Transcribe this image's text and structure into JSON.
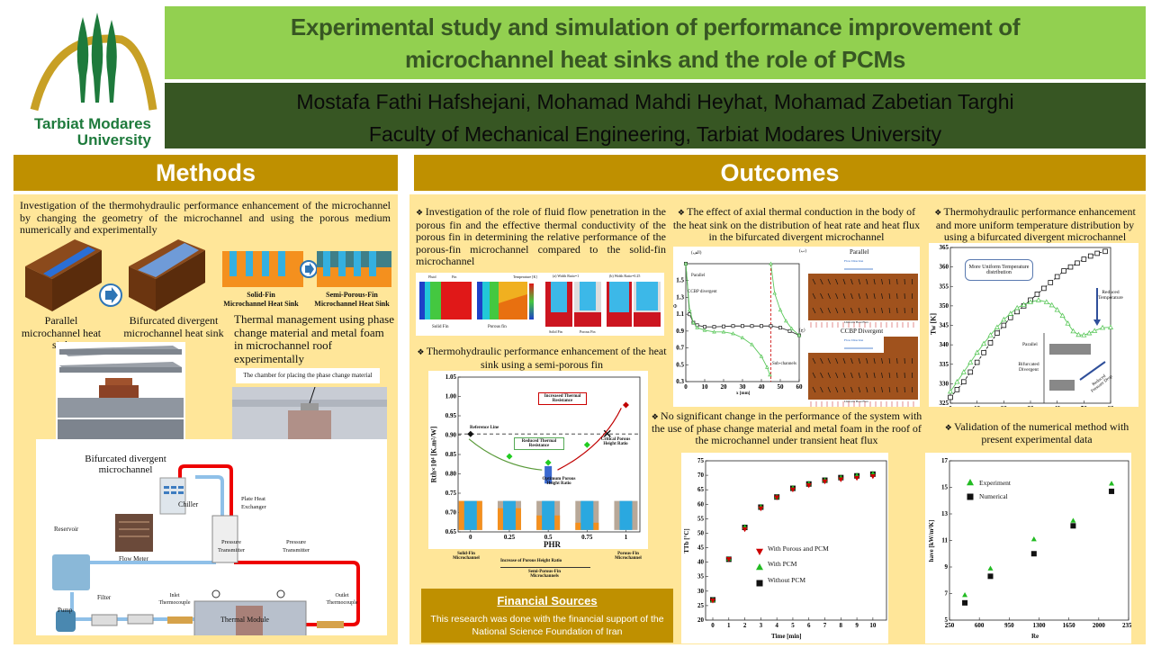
{
  "header": {
    "university_logo_text": [
      "Tarbiat Modares",
      "University"
    ],
    "title_lines": [
      "Experimental study and simulation of performance improvement of",
      "microchannel heat sinks and the role of PCMs"
    ],
    "authors": "Mostafa Fathi Hafshejani, Mohamad Mahdi Heyhat, Mohamad Zabetian Targhi",
    "affiliation": "Faculty of Mechanical Engineering, Tarbiat Modares University"
  },
  "colors": {
    "title_bg": "#92d050",
    "title_text": "#375623",
    "author_bg": "#375623",
    "section_bg": "#bf9000",
    "panel_bg": "#ffe699"
  },
  "methods": {
    "heading": "Methods",
    "intro": "Investigation of the thermohydraulic performance enhancement of the microchannel by changing the geometry of the microchannel and using the porous medium numerically and experimentally",
    "parallel_label": "Parallel microchannel heat sink",
    "bifurcated_label": "Bifurcated divergent microchannel heat sink",
    "solid_fin_label": [
      "Solid-Fin",
      "Microchannel Heat Sink"
    ],
    "semi_porous_label": [
      "Semi-Porous-Fin",
      "Microchannel Heat Sink"
    ],
    "thermal_management": "Thermal management using phase change material and metal foam in microchannel roof experimentally",
    "chamber_label": "The chamber for placing the phase change material",
    "setup": {
      "bifurcated": "Bifurcated divergent microchannel",
      "chiller": "Chiller",
      "plate_hx": "Plate Heat Exchanger",
      "reservoir": "Reservoir",
      "pressure_1": "Pressure Transmitter",
      "pressure_2": "Pressure Transmitter",
      "flow_meter": "Flow Meter",
      "filter": "Filter",
      "inlet_tc": "Inlet Thermocouple",
      "outlet_tc": "Outlet Thermocouple",
      "thermal_module": "Thermal Module",
      "pump": "Pump"
    }
  },
  "outcomes": {
    "heading": "Outcomes",
    "bullet_porous_penetration": "Investigation of the role of fluid flow penetration in the porous fin and the effective thermal conductivity of the porous fin in determining the relative performance of the porous-fin microchannel compared to the solid-fin microchannel",
    "contour": {
      "fluid": "Fluid",
      "fin": "Fin",
      "solid_fin": "Solid Fin",
      "porous_fin": "Porous fin",
      "temp_legend": "Temperature [K]",
      "width_ratio_1": "(a) Width Ratio=1",
      "width_ratio_025": "(b) Width Ratio=0.25",
      "solid": "Solid Fin",
      "porous": "Porous Fin"
    },
    "bullet_semi_porous": "Thermohydraulic performance enhancement of the heat sink using a semi-porous fin",
    "bullet_axial": "The effect of axial thermal conduction in the body of the heat sink on the distribution of heat rate and heat flux in the bifurcated divergent microchannel",
    "bullet_uniform": "Thermohydraulic performance enhancement and more uniform temperature distribution by using a bifurcated divergent microchannel",
    "bullet_pcm": "No significant change in the performance of the system with the use of phase change material and metal foam in the roof of the microchannel under transient heat flux",
    "bullet_validation": "Validation of the numerical method with present experimental data",
    "flow_fields": {
      "label_a": "(الف)",
      "label_b": "(ب)",
      "label_c": "(ج)",
      "parallel": "Parallel",
      "ccbp": "CCBP Divergent",
      "flow_direction": "Flow Direction",
      "heat_flux": "Uniform Heat Flux"
    },
    "financial": {
      "heading": "Financial Sources",
      "text": "This research was done with the financial support of the National Science Foundation of Iran"
    }
  },
  "chart_data": [
    {
      "id": "rth",
      "type": "scatter",
      "xlabel": "PHR",
      "ylabel": "Rth×10⁴ [K.m²/W]",
      "xlim": [
        -0.08,
        1.09
      ],
      "ylim": [
        0.65,
        1.05
      ],
      "xticks": [
        0,
        0.25,
        0.5,
        0.75,
        1
      ],
      "xtick_labels": [
        "0",
        "0.25",
        "0.5",
        "0.75",
        "1"
      ],
      "yticks": [
        0.65,
        0.7,
        0.75,
        0.8,
        0.85,
        0.9,
        0.95,
        1.0,
        1.05
      ],
      "ytick_labels": [
        "0.65",
        "0.70",
        "0.75",
        "0.80",
        "0.85",
        "0.90",
        "0.95",
        "1.00",
        "1.05"
      ],
      "reference_line": 0.903,
      "series": [
        {
          "name": "Solid-fin",
          "color": "#111111",
          "marker": "diamond",
          "points": [
            [
              0,
              0.903
            ]
          ]
        },
        {
          "name": "Semi-porous",
          "color": "#22cc22",
          "marker": "diamond",
          "points": [
            [
              0.25,
              0.845
            ],
            [
              0.5,
              0.829
            ],
            [
              0.75,
              0.875
            ]
          ]
        },
        {
          "name": "Porous-fin",
          "color": "#c00000",
          "marker": "diamond",
          "points": [
            [
              1,
              0.978
            ]
          ]
        },
        {
          "name": "Critical",
          "color": "#111111",
          "marker": "x",
          "points": [
            [
              0.88,
              0.904
            ]
          ]
        }
      ],
      "annotations": {
        "reference": "Reference Line",
        "increased": "Increased Thermal Resistance",
        "reduced": "Reduced Thermal Resistance",
        "critical": "Critical Porous Height Ratio",
        "optimum": "Optimum Porous Height Ratio"
      },
      "below": {
        "solid": "Solid-Fin Microchannel",
        "porous": "Porous-Fin Microchannel",
        "increase": "Increase of Porous Height Ratio",
        "semi": "Semi-Porous-Fin Microchannels"
      }
    },
    {
      "id": "phi",
      "type": "line",
      "xlabel": "x [mm]",
      "ylabel": "Φ",
      "xlim": [
        0,
        60
      ],
      "ylim": [
        0.3,
        1.7
      ],
      "xticks": [
        0,
        10,
        20,
        30,
        40,
        50,
        60
      ],
      "xtick_labels": [
        "0",
        "10",
        "20",
        "30",
        "40",
        "50",
        "60"
      ],
      "yticks": [
        0.3,
        0.5,
        0.7,
        0.9,
        1.1,
        1.3,
        1.5
      ],
      "ytick_labels": [
        "0.3",
        "0.5",
        "0.7",
        "0.9",
        "1.1",
        "1.3",
        "1.5"
      ],
      "series": [
        {
          "name": "Parallel",
          "color": "#333333",
          "marker": "open-square",
          "line": true,
          "points": [
            [
              0,
              1.7
            ],
            [
              2,
              1.1
            ],
            [
              4,
              1.0
            ],
            [
              6,
              0.97
            ],
            [
              10,
              0.95
            ],
            [
              15,
              0.95
            ],
            [
              20,
              0.955
            ],
            [
              25,
              0.96
            ],
            [
              30,
              0.96
            ],
            [
              35,
              0.96
            ],
            [
              40,
              0.96
            ],
            [
              45,
              0.96
            ],
            [
              50,
              0.94
            ],
            [
              55,
              0.9
            ],
            [
              60,
              0.85
            ]
          ]
        },
        {
          "name": "CCBP divergent",
          "color": "#5cc85c",
          "marker": "open-tri",
          "line": true,
          "points": [
            [
              0,
              1.7
            ],
            [
              2,
              1.15
            ],
            [
              4,
              1.0
            ],
            [
              6,
              0.94
            ],
            [
              10,
              0.91
            ],
            [
              15,
              0.89
            ],
            [
              20,
              0.89
            ],
            [
              25,
              0.87
            ],
            [
              30,
              0.82
            ],
            [
              35,
              0.74
            ],
            [
              40,
              0.6
            ],
            [
              43,
              0.47
            ],
            [
              44.5,
              0.38
            ],
            null,
            [
              45,
              1.7
            ],
            [
              47,
              1.35
            ],
            [
              50,
              1.15
            ],
            [
              53,
              1.02
            ],
            [
              56,
              0.93
            ],
            [
              60,
              0.85
            ]
          ]
        }
      ],
      "vline": 45,
      "annotation": "Sub-channels"
    },
    {
      "id": "tw",
      "type": "line",
      "xlabel": "x [mm]",
      "ylabel": "Tw [K]",
      "xlim": [
        0,
        60
      ],
      "ylim": [
        325,
        365
      ],
      "xticks": [
        0,
        10,
        20,
        30,
        40,
        50,
        60
      ],
      "xtick_labels": [
        "0",
        "10",
        "20",
        "30",
        "40",
        "50",
        "60"
      ],
      "yticks": [
        325,
        330,
        335,
        340,
        345,
        350,
        355,
        360,
        365
      ],
      "ytick_labels": [
        "325",
        "330",
        "335",
        "340",
        "345",
        "350",
        "355",
        "360",
        "365"
      ],
      "series": [
        {
          "name": "Parallel",
          "color": "#111111",
          "marker": "open-square",
          "line": true,
          "dash": true,
          "points": [
            [
              0,
              326.5
            ],
            [
              2.5,
              328.5
            ],
            [
              5,
              330.5
            ],
            [
              7.5,
              333
            ],
            [
              10,
              335.5
            ],
            [
              12.5,
              338
            ],
            [
              15,
              340.5
            ],
            [
              17.5,
              343
            ],
            [
              20,
              345
            ],
            [
              22.5,
              347
            ],
            [
              25,
              348.5
            ],
            [
              27.5,
              350
            ],
            [
              30,
              351.5
            ],
            [
              32.5,
              353
            ],
            [
              35,
              354.5
            ],
            [
              37.5,
              356
            ],
            [
              40,
              357.5
            ],
            [
              42.5,
              359
            ],
            [
              45,
              360
            ],
            [
              47.5,
              361
            ],
            [
              50,
              362
            ],
            [
              52.5,
              362.8
            ],
            [
              55,
              363.5
            ],
            [
              58,
              364
            ]
          ]
        },
        {
          "name": "Bifurcated Divergent",
          "color": "#5cc85c",
          "marker": "open-tri",
          "line": true,
          "points": [
            [
              0,
              328
            ],
            [
              2.5,
              330.5
            ],
            [
              5,
              333
            ],
            [
              7.5,
              335.5
            ],
            [
              10,
              338
            ],
            [
              12.5,
              340.3
            ],
            [
              15,
              342.5
            ],
            [
              17.5,
              344.5
            ],
            [
              20,
              346.5
            ],
            [
              22.5,
              348
            ],
            [
              25,
              349.5
            ],
            [
              27.5,
              350.3
            ],
            [
              30,
              351
            ],
            [
              33,
              351.5
            ],
            [
              36,
              351
            ],
            [
              38,
              350.2
            ],
            [
              40,
              349
            ],
            [
              42,
              347.5
            ],
            [
              44,
              345.5
            ],
            [
              46,
              343.5
            ],
            [
              48,
              342.6
            ],
            [
              50,
              342.5
            ],
            [
              52,
              343
            ],
            [
              54,
              343.6
            ],
            [
              57,
              344.4
            ],
            [
              60,
              344.5
            ]
          ]
        }
      ],
      "annotations": {
        "uniform": "More Uniform Temperature distribution",
        "reduced_temp": "Reduced Temperature",
        "reduced_dp": "Reduced Pressure Drop"
      }
    },
    {
      "id": "ttb",
      "type": "scatter",
      "xlabel": "Time [min]",
      "ylabel": "TTb [°C]",
      "xlim": [
        -0.45,
        10.85
      ],
      "ylim": [
        20,
        75
      ],
      "xticks": [
        0,
        1,
        2,
        3,
        4,
        5,
        6,
        7,
        8,
        9,
        10
      ],
      "xtick_labels": [
        "0",
        "1",
        "2",
        "3",
        "4",
        "5",
        "6",
        "7",
        "8",
        "9",
        "10"
      ],
      "yticks": [
        20,
        25,
        30,
        35,
        40,
        45,
        50,
        55,
        60,
        65,
        70,
        75
      ],
      "ytick_labels": [
        "20",
        "25",
        "30",
        "35",
        "40",
        "45",
        "50",
        "55",
        "60",
        "65",
        "70",
        "75"
      ],
      "series": [
        {
          "name": "Without PCM",
          "color": "#111111",
          "marker": "square",
          "points": [
            [
              0,
              27
            ],
            [
              1,
              41
            ],
            [
              2,
              52
            ],
            [
              3,
              59
            ],
            [
              4,
              62.5
            ],
            [
              5,
              65.5
            ],
            [
              6,
              67
            ],
            [
              7,
              68.3
            ],
            [
              8,
              69.2
            ],
            [
              9,
              69.8
            ],
            [
              10,
              70.4
            ]
          ]
        },
        {
          "name": "With PCM",
          "color": "#22bb22",
          "marker": "tri-up",
          "points": [
            [
              0,
              27
            ],
            [
              1,
              41.2
            ],
            [
              2,
              52.2
            ],
            [
              3,
              59.2
            ],
            [
              4,
              62.6
            ],
            [
              5,
              65.7
            ],
            [
              6,
              67.2
            ],
            [
              7,
              68.4
            ],
            [
              8,
              69.3
            ],
            [
              9,
              70
            ],
            [
              10,
              70.6
            ]
          ]
        },
        {
          "name": "With Porous and PCM",
          "color": "#cc0000",
          "marker": "tri-down",
          "points": [
            [
              0,
              26.7
            ],
            [
              1,
              41
            ],
            [
              2,
              51.3
            ],
            [
              3,
              58.5
            ],
            [
              4,
              62.3
            ],
            [
              5,
              65
            ],
            [
              6,
              66.5
            ],
            [
              7,
              67.8
            ],
            [
              8,
              68.5
            ],
            [
              9,
              69
            ],
            [
              10,
              69.6
            ]
          ]
        }
      ],
      "legend_order": [
        "With Porous and PCM",
        "With PCM",
        "Without PCM"
      ]
    },
    {
      "id": "have",
      "type": "scatter",
      "xlabel": "Re",
      "ylabel": "have [kW/m²K]",
      "xlim": [
        250,
        2350
      ],
      "ylim": [
        5,
        17
      ],
      "xticks": [
        250,
        600,
        950,
        1300,
        1650,
        2000,
        2350
      ],
      "xtick_labels": [
        "250",
        "600",
        "950",
        "1300",
        "1650",
        "2000",
        "2350"
      ],
      "yticks": [
        5,
        7,
        9,
        11,
        13,
        15,
        17
      ],
      "ytick_labels": [
        "5",
        "7",
        "9",
        "11",
        "13",
        "15",
        "17"
      ],
      "series": [
        {
          "name": "Experiment",
          "color": "#22bb22",
          "marker": "tri-up",
          "points": [
            [
              430,
              6.9
            ],
            [
              730,
              8.9
            ],
            [
              1240,
              11.1
            ],
            [
              1700,
              12.5
            ],
            [
              2150,
              15.3
            ]
          ]
        },
        {
          "name": "Numerical",
          "color": "#111111",
          "marker": "square",
          "points": [
            [
              430,
              6.3
            ],
            [
              730,
              8.3
            ],
            [
              1240,
              10.0
            ],
            [
              1700,
              12.1
            ],
            [
              2150,
              14.7
            ]
          ]
        }
      ]
    }
  ]
}
